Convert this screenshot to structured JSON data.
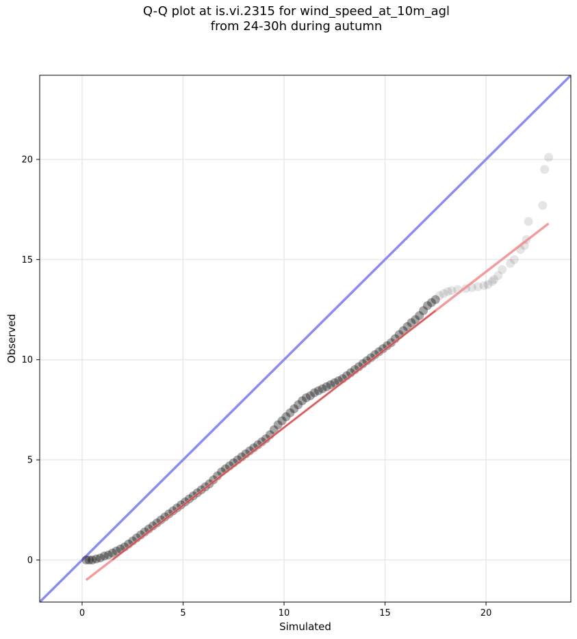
{
  "chart_data": {
    "type": "scatter",
    "title_lines": [
      "Q-Q plot at is.vi.2315 for wind_speed_at_10m_agl",
      "from 24-30h during autumn"
    ],
    "xlabel": "Simulated",
    "ylabel": "Observed",
    "xlim": [
      -2.1,
      24.2
    ],
    "ylim": [
      -2.1,
      24.2
    ],
    "xticks": [
      0,
      5,
      10,
      15,
      20
    ],
    "yticks": [
      0,
      5,
      10,
      15,
      20
    ],
    "grid": true,
    "colors": {
      "points": "#000000",
      "identity_line": "#8c8cf0",
      "fit_line": "#f08c8c",
      "fit_line_dense": "#b22222",
      "grid": "#e8e8e8"
    },
    "identity_line": {
      "x": [
        -2.1,
        24.2
      ],
      "y": [
        -2.1,
        24.2
      ]
    },
    "fit_line": {
      "x": [
        0.2,
        23.1
      ],
      "y": [
        -1.0,
        16.8
      ]
    },
    "series": [
      {
        "x": [
          0.2,
          0.35,
          0.5,
          0.7,
          0.9,
          1.1,
          1.3,
          1.5,
          1.7,
          1.9,
          2.1,
          2.3,
          2.5,
          2.7,
          2.9,
          3.1,
          3.3,
          3.5,
          3.7,
          3.9,
          4.1,
          4.3,
          4.5,
          4.7,
          4.9,
          5.1,
          5.3,
          5.5,
          5.7,
          5.9,
          6.1,
          6.3,
          6.5,
          6.7,
          6.9,
          7.1,
          7.3,
          7.5,
          7.7,
          7.9,
          8.1,
          8.3,
          8.5,
          8.7,
          8.9,
          9.1,
          9.3,
          9.5,
          9.7,
          9.9,
          10.1,
          10.3,
          10.5,
          10.7,
          10.9,
          11.1,
          11.3,
          11.5,
          11.7,
          11.9,
          12.1,
          12.3,
          12.5,
          12.7,
          12.9,
          13.1,
          13.3,
          13.5,
          13.7,
          13.9,
          14.1,
          14.3,
          14.5,
          14.7,
          14.9,
          15.1,
          15.3,
          15.5,
          15.7,
          15.9,
          16.1,
          16.3,
          16.5,
          16.7,
          16.9,
          17.1,
          17.3,
          17.5,
          17.7,
          17.9,
          18.1,
          18.3,
          18.6,
          19.0,
          19.3,
          19.6,
          19.9,
          20.1,
          20.3,
          20.4,
          20.6,
          20.8,
          21.2,
          21.4,
          21.7,
          21.9,
          22.0,
          22.1,
          22.8,
          22.9,
          23.1
        ],
        "y": [
          0.0,
          0.0,
          0.0,
          0.05,
          0.1,
          0.2,
          0.25,
          0.35,
          0.45,
          0.55,
          0.65,
          0.8,
          0.95,
          1.1,
          1.25,
          1.4,
          1.55,
          1.7,
          1.85,
          2.0,
          2.15,
          2.3,
          2.45,
          2.6,
          2.75,
          2.9,
          3.05,
          3.2,
          3.35,
          3.5,
          3.65,
          3.8,
          4.0,
          4.2,
          4.4,
          4.55,
          4.7,
          4.85,
          5.0,
          5.15,
          5.3,
          5.45,
          5.6,
          5.75,
          5.9,
          6.05,
          6.25,
          6.5,
          6.75,
          6.95,
          7.15,
          7.35,
          7.55,
          7.75,
          7.95,
          8.1,
          8.2,
          8.35,
          8.45,
          8.55,
          8.65,
          8.75,
          8.85,
          8.95,
          9.05,
          9.2,
          9.35,
          9.5,
          9.65,
          9.8,
          9.95,
          10.1,
          10.25,
          10.4,
          10.55,
          10.7,
          10.85,
          11.05,
          11.25,
          11.45,
          11.65,
          11.85,
          12.0,
          12.2,
          12.45,
          12.7,
          12.85,
          13.0,
          13.2,
          13.3,
          13.4,
          13.45,
          13.5,
          13.55,
          13.6,
          13.65,
          13.7,
          13.75,
          13.9,
          14.0,
          14.2,
          14.5,
          14.8,
          15.0,
          15.5,
          15.7,
          16.0,
          16.9,
          17.7,
          19.5,
          20.1
        ]
      }
    ]
  }
}
